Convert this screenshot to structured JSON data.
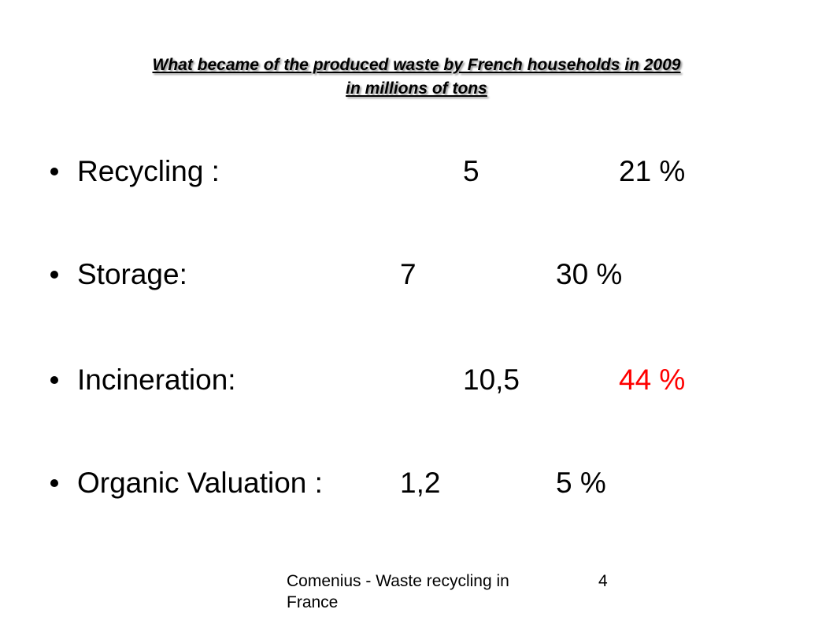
{
  "title": {
    "line1": "What became of the produced waste by French households in 2009",
    "line2": "in millions of tons"
  },
  "items": [
    {
      "label": "Recycling :",
      "value": "5",
      "percent": "21 %",
      "percent_color": "#000000"
    },
    {
      "label": "Storage:",
      "value": "7",
      "percent": "30 %",
      "percent_color": "#000000"
    },
    {
      "label": "Incineration:",
      "value": "10,5",
      "percent": "44 %",
      "percent_color": "#ff0000"
    },
    {
      "label": "Organic Valuation :",
      "value": "1,2",
      "percent": "5 %",
      "percent_color": "#000000"
    }
  ],
  "footer": {
    "text": "Comenius - Waste recycling in France",
    "page_number": "4"
  },
  "colors": {
    "highlight": "#ff0000",
    "text": "#000000",
    "background": "#ffffff"
  }
}
